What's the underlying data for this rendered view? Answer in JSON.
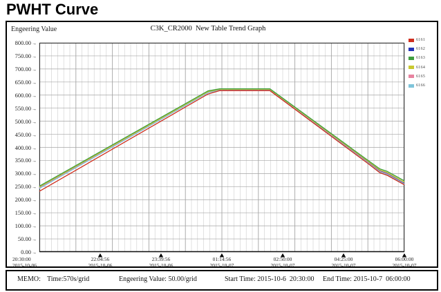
{
  "page": {
    "title": "PWHT Curve"
  },
  "chart": {
    "y_axis_title": "Engeering Value",
    "title": "C3K_CR2000  New Table Trend Graph"
  },
  "chart_data": {
    "type": "line",
    "title": "C3K_CR2000 New Table Trend Graph",
    "xlabel": "",
    "ylabel": "Engeering Value",
    "ylim": [
      0,
      800
    ],
    "value_per_gridline": 50,
    "time_per_grid_seconds": 570,
    "x_total_seconds": 34200,
    "x_minor_divisions": 60,
    "y_divisions": 16,
    "grid": true,
    "legend_position": "right",
    "y_tick_labels": [
      "800.00",
      "750.00",
      "700.00",
      "650.00",
      "600.00",
      "550.00",
      "500.00",
      "450.00",
      "400.00",
      "350.00",
      "300.00",
      "250.00",
      "200.00",
      "150.00",
      "100.00",
      "50.00",
      "0.00"
    ],
    "x_ticks": [
      {
        "time": "20:30:00",
        "date": "2015-10-06",
        "seconds": 0,
        "arrow": false
      },
      {
        "time": "22:04:56",
        "date": "2015-10-06",
        "seconds": 5696,
        "arrow": true
      },
      {
        "time": "23:39:56",
        "date": "2015-10-06",
        "seconds": 11396,
        "arrow": true
      },
      {
        "time": "01:14:56",
        "date": "2015-10-07",
        "seconds": 17096,
        "arrow": true
      },
      {
        "time": "02:50:00",
        "date": "2015-10-07",
        "seconds": 22800,
        "arrow": true
      },
      {
        "time": "04:25:00",
        "date": "2015-10-07",
        "seconds": 28500,
        "arrow": true
      },
      {
        "time": "06:00:00",
        "date": "2015-10-07",
        "seconds": 34200,
        "arrow": true
      }
    ],
    "series": [
      {
        "name": "6162",
        "color": "#2433b8",
        "points": [
          [
            0,
            247
          ],
          [
            15800,
            611
          ],
          [
            16900,
            620
          ],
          [
            21600,
            620
          ],
          [
            30800,
            344
          ],
          [
            31900,
            310
          ],
          [
            32600,
            300
          ],
          [
            34200,
            262
          ]
        ]
      },
      {
        "name": "6165",
        "color": "#e883a0",
        "points": [
          [
            0,
            245
          ],
          [
            15800,
            610
          ],
          [
            16900,
            619
          ],
          [
            21600,
            619
          ],
          [
            30800,
            342
          ],
          [
            31900,
            308
          ],
          [
            32600,
            298
          ],
          [
            34200,
            260
          ]
        ]
      },
      {
        "name": "6166",
        "color": "#7fc4da",
        "points": [
          [
            0,
            243
          ],
          [
            15800,
            609
          ],
          [
            16900,
            618
          ],
          [
            21600,
            618
          ],
          [
            30800,
            340
          ],
          [
            31900,
            306
          ],
          [
            32600,
            296
          ],
          [
            34200,
            259
          ]
        ]
      },
      {
        "name": "6161",
        "color": "#cf2e1e",
        "points": [
          [
            0,
            232
          ],
          [
            15800,
            604
          ],
          [
            16900,
            617
          ],
          [
            21600,
            617
          ],
          [
            30800,
            338
          ],
          [
            31900,
            303
          ],
          [
            32600,
            293
          ],
          [
            34200,
            257
          ]
        ]
      },
      {
        "name": "6164",
        "color": "#c9c930",
        "points": [
          [
            0,
            249
          ],
          [
            15800,
            613
          ],
          [
            16900,
            622
          ],
          [
            21600,
            622
          ],
          [
            30800,
            347
          ],
          [
            31900,
            314
          ],
          [
            32600,
            304
          ],
          [
            34200,
            267
          ]
        ]
      },
      {
        "name": "6163",
        "color": "#3f9e3f",
        "points": [
          [
            0,
            252
          ],
          [
            15800,
            616
          ],
          [
            16900,
            624
          ],
          [
            21600,
            624
          ],
          [
            30800,
            350
          ],
          [
            31900,
            318
          ],
          [
            32600,
            308
          ],
          [
            34200,
            272
          ]
        ]
      }
    ]
  },
  "legend": {
    "entries": [
      {
        "label": "6161",
        "color": "#cf2e1e"
      },
      {
        "label": "6162",
        "color": "#2433b8"
      },
      {
        "label": "6163",
        "color": "#3f9e3f"
      },
      {
        "label": "6164",
        "color": "#c9c930"
      },
      {
        "label": "6165",
        "color": "#e883a0"
      },
      {
        "label": "6166",
        "color": "#7fc4da"
      }
    ]
  },
  "footer": {
    "memo": "MEMO:",
    "time_per_grid": "Time:570s/grid",
    "value_per_grid": "Engeering Value: 50.00/grid",
    "start_time": "Start Time: 2015-10-6  20:30:00",
    "end_time": "End Time: 2015-10-7  06:00:00"
  }
}
